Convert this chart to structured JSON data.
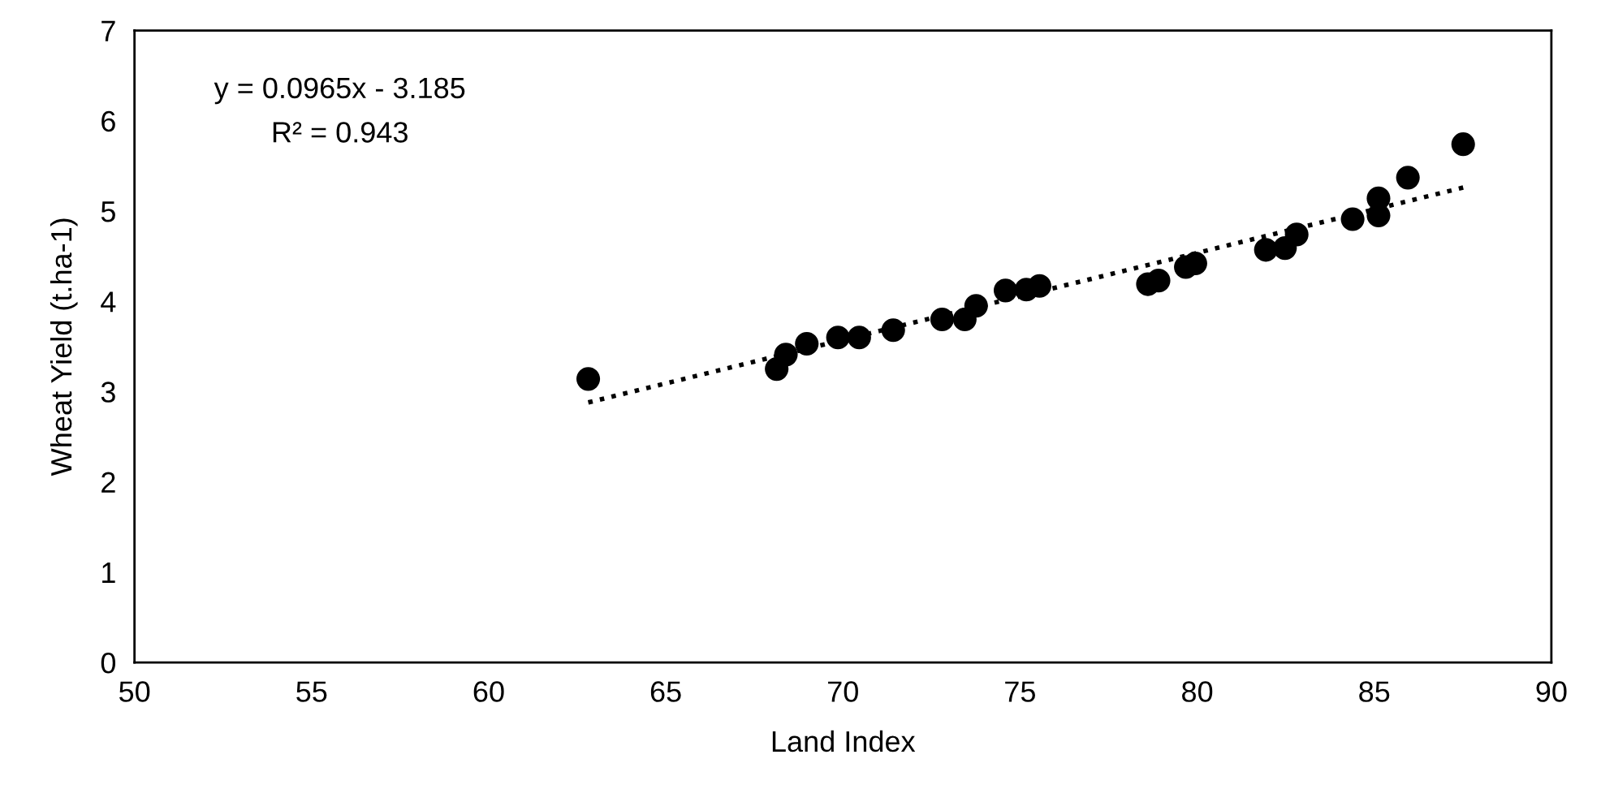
{
  "chart_data": {
    "type": "scatter",
    "xlabel": "Land Index",
    "ylabel": "Wheat Yield (t.ha-1)",
    "xlim": [
      50,
      90
    ],
    "xticks": [
      50,
      55,
      60,
      65,
      70,
      75,
      80,
      85,
      90
    ],
    "ylim": [
      0,
      7
    ],
    "yticks": [
      0,
      1,
      2,
      3,
      4,
      5,
      6,
      7
    ],
    "grid": false,
    "series": [
      {
        "color": "#000000",
        "marker": "circle",
        "x": [
          62.81,
          68.13,
          68.39,
          68.98,
          69.86,
          70.46,
          71.42,
          72.8,
          73.44,
          73.76,
          74.59,
          75.18,
          75.55,
          78.61,
          78.91,
          79.68,
          79.95,
          81.94,
          82.48,
          82.81,
          84.39,
          85.12,
          85.12,
          85.95,
          87.51
        ],
        "values": [
          3.14,
          3.25,
          3.41,
          3.53,
          3.6,
          3.6,
          3.68,
          3.8,
          3.8,
          3.95,
          4.12,
          4.13,
          4.17,
          4.19,
          4.23,
          4.38,
          4.42,
          4.57,
          4.59,
          4.74,
          4.91,
          4.95,
          5.14,
          5.37,
          5.74
        ]
      },
      {
        "type": "line",
        "color": "#000000",
        "line_style": "dotted",
        "marker": "none",
        "x": [
          62.81,
          87.51
        ],
        "values": [
          2.88,
          5.26
        ]
      }
    ],
    "annotations": [
      "y = 0.0965x - 3.185",
      "R² = 0.943"
    ]
  }
}
